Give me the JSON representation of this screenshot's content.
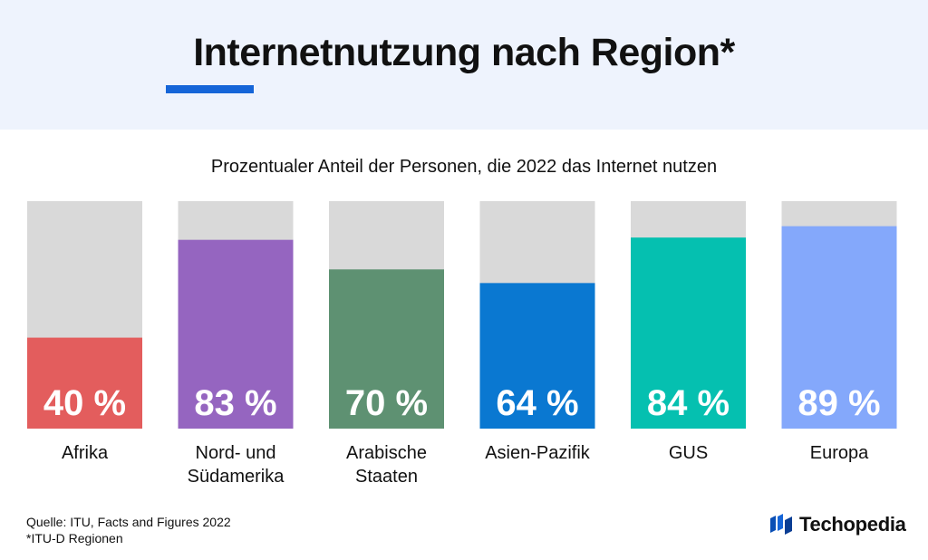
{
  "header": {
    "title": "Internetnutzung nach Region*",
    "subtitle": "Prozentualer Anteil der Personen, die 2022 das Internet nutzen"
  },
  "colors": {
    "header_bg": "#eef3fd",
    "accent": "#1565d8",
    "track": "#d9d9d9"
  },
  "chart_data": {
    "type": "bar",
    "title": "Internetnutzung nach Region*",
    "subtitle": "Prozentualer Anteil der Personen, die 2022 das Internet nutzen",
    "categories": [
      "Afrika",
      "Nord- und Südamerika",
      "Arabische Staaten",
      "Asien-Pazifik",
      "GUS",
      "Europa"
    ],
    "category_lines": [
      [
        "Afrika"
      ],
      [
        "Nord- und",
        "Südamerika"
      ],
      [
        "Arabische",
        "Staaten"
      ],
      [
        "Asien-Pazifik"
      ],
      [
        "GUS"
      ],
      [
        "Europa"
      ]
    ],
    "values": [
      40,
      83,
      70,
      64,
      84,
      89
    ],
    "value_labels": [
      "40 %",
      "83 %",
      "70 %",
      "64 %",
      "84 %",
      "89 %"
    ],
    "colors": [
      "#e35d5d",
      "#9565c0",
      "#5e9172",
      "#0a78d1",
      "#05c0b0",
      "#84a8fb"
    ],
    "ylim": [
      0,
      100
    ],
    "grid": false,
    "legend": "none"
  },
  "footer": {
    "source": "Quelle: ITU, Facts and Figures 2022",
    "note": "*ITU-D Regionen",
    "brand": "Techopedia",
    "brand_icon": "techopedia-logo-icon"
  }
}
